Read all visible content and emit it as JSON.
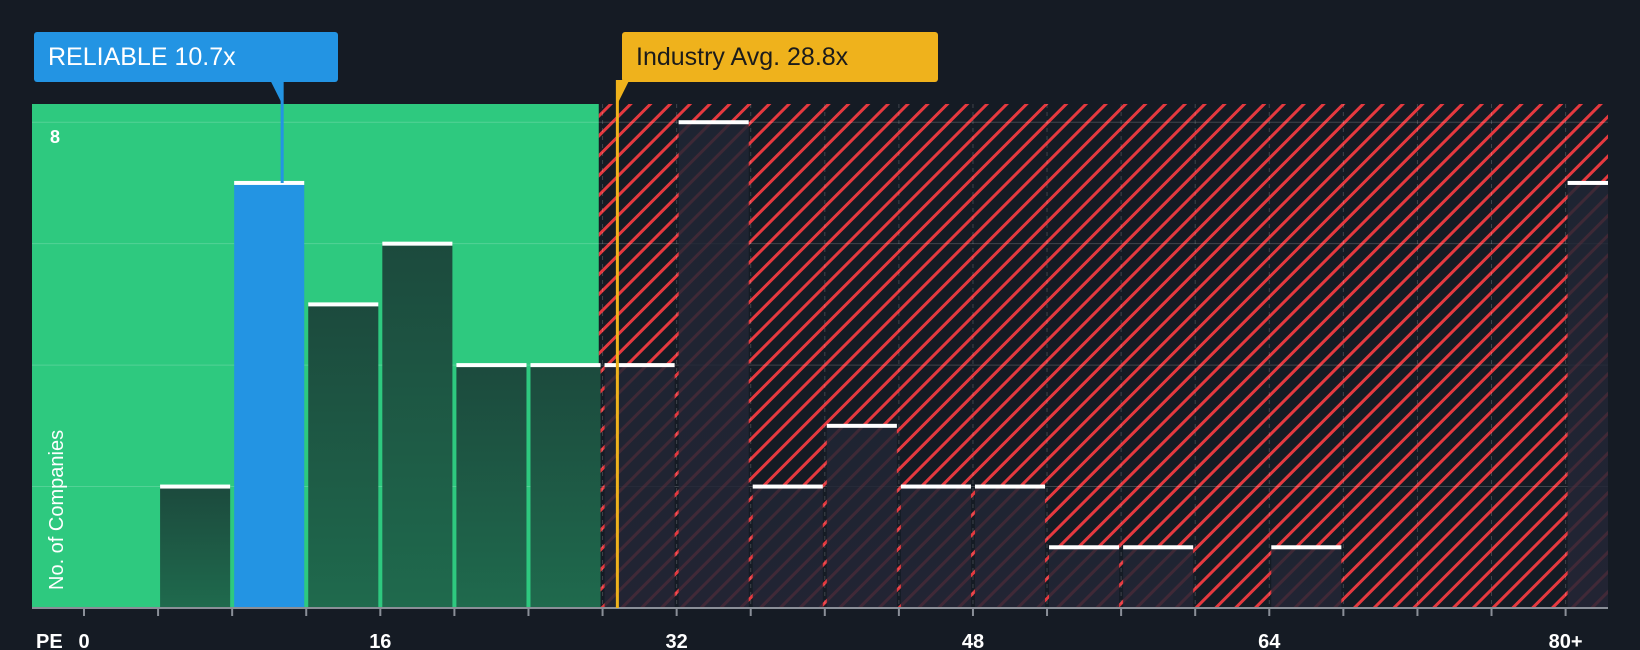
{
  "colors": {
    "background": "#151b24",
    "good_zone": "#2ec97f",
    "bad_hatch": "#e5393f",
    "subject_bar": "#2394e3",
    "industry_marker": "#efb21c",
    "bar_cap": "#ffffff"
  },
  "labels": {
    "subject": "RELIABLE 10.7x",
    "industry": "Industry Avg. 28.8x"
  },
  "chart_data": {
    "type": "bar",
    "title": "",
    "xlabel": "PE",
    "ylabel": "No. of Companies",
    "xlim": [
      0,
      82
    ],
    "ylim": [
      0,
      8.3
    ],
    "x_ticks": [
      {
        "value": 0,
        "label": "0"
      },
      {
        "value": 16,
        "label": "16"
      },
      {
        "value": 32,
        "label": "32"
      },
      {
        "value": 48,
        "label": "48"
      },
      {
        "value": 64,
        "label": "64"
      },
      {
        "value": 80,
        "label": "80+"
      }
    ],
    "y_ticks": [
      {
        "value": 8,
        "label": "8"
      }
    ],
    "y_gridlines": [
      2,
      4,
      6,
      8
    ],
    "bin_edges": [
      0,
      4,
      8,
      12,
      16,
      20,
      24,
      28,
      32,
      36,
      40,
      44,
      48,
      52,
      56,
      60,
      64,
      68,
      72,
      76,
      80,
      82
    ],
    "bins": [
      {
        "start": 4,
        "end": 8,
        "count": 2
      },
      {
        "start": 8,
        "end": 12,
        "count": 7,
        "subject": true
      },
      {
        "start": 12,
        "end": 16,
        "count": 5
      },
      {
        "start": 16,
        "end": 20,
        "count": 6
      },
      {
        "start": 20,
        "end": 24,
        "count": 4
      },
      {
        "start": 24,
        "end": 28,
        "count": 4
      },
      {
        "start": 28,
        "end": 32,
        "count": 4
      },
      {
        "start": 32,
        "end": 36,
        "count": 8
      },
      {
        "start": 36,
        "end": 40,
        "count": 2
      },
      {
        "start": 40,
        "end": 44,
        "count": 3
      },
      {
        "start": 44,
        "end": 48,
        "count": 2
      },
      {
        "start": 48,
        "end": 52,
        "count": 2
      },
      {
        "start": 52,
        "end": 56,
        "count": 1
      },
      {
        "start": 56,
        "end": 60,
        "count": 1
      },
      {
        "start": 64,
        "end": 68,
        "count": 1
      },
      {
        "start": 80,
        "end": 82,
        "count": 7
      }
    ],
    "subject_value": 10.7,
    "industry_value": 28.8,
    "good_zone_end": 27.8
  }
}
